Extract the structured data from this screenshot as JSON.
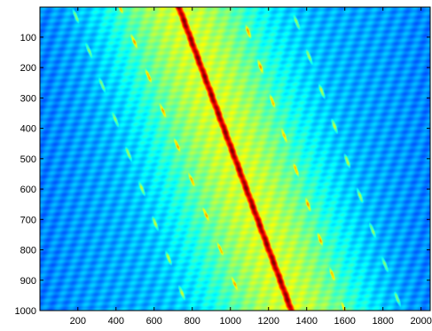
{
  "chart_data": {
    "type": "heatmap",
    "title": "",
    "xlabel": "",
    "ylabel": "",
    "xlim": [
      1,
      2048
    ],
    "ylim": [
      1000,
      1
    ],
    "y_direction": "reversed (1 at top, 1000 at bottom)",
    "x_ticks": [
      200,
      400,
      600,
      800,
      1000,
      1200,
      1400,
      1600,
      1800,
      2000
    ],
    "y_ticks": [
      100,
      200,
      300,
      400,
      500,
      600,
      700,
      800,
      900,
      1000
    ],
    "colormap": "jet",
    "colormap_stops": [
      "#00008f",
      "#0000ff",
      "#00ffff",
      "#ffff00",
      "#ff0000",
      "#800000"
    ],
    "background_level": 0.3,
    "main_ridge": {
      "description": "diagonal high-intensity ridge",
      "x_at_row_1": 730,
      "x_at_row_1000": 1320,
      "peak_level": 0.92,
      "band_halfwidth_x": 380
    },
    "side_ridges": [
      {
        "x_at_row_1": 170,
        "x_at_row_1000": 780,
        "level": 0.55
      },
      {
        "x_at_row_1": 420,
        "x_at_row_1000": 1080,
        "level": 0.72
      },
      {
        "x_at_row_1": 1050,
        "x_at_row_1000": 1600,
        "level": 0.7
      },
      {
        "x_at_row_1": 1320,
        "x_at_row_1000": 1900,
        "level": 0.55
      }
    ],
    "grid": false,
    "legend": "none",
    "colorbar": false
  }
}
